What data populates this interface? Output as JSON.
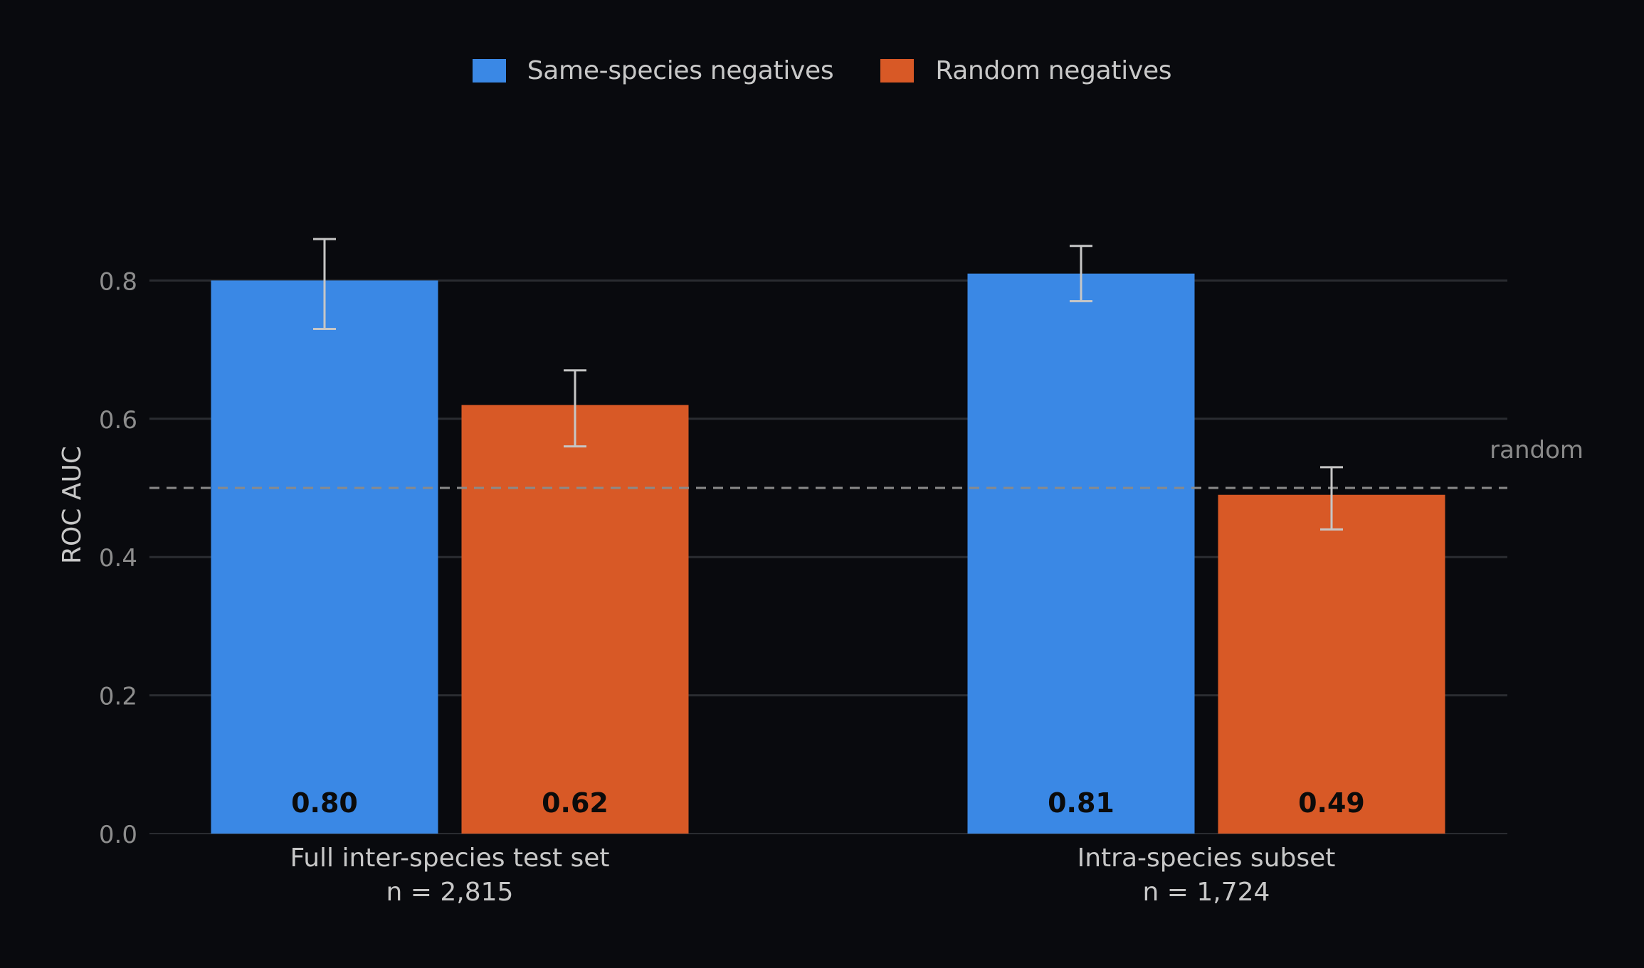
{
  "chart_data": {
    "type": "bar",
    "title": "",
    "xlabel": "",
    "ylabel": "ROC AUC",
    "ylim": [
      0,
      1.0
    ],
    "yticks": [
      0.0,
      0.2,
      0.4,
      0.6,
      0.8
    ],
    "ytick_labels": [
      "0.0",
      "0.2",
      "0.4",
      "0.6",
      "0.8"
    ],
    "grid": true,
    "legend_position": "top-center",
    "categories": [
      [
        "Full inter-species test set",
        "n = 2,815"
      ],
      [
        "Intra-species subset",
        "n = 1,724"
      ]
    ],
    "series": [
      {
        "name": "Same-species negatives",
        "color": "#3a88e5",
        "values": [
          0.8,
          0.81
        ],
        "error_low": [
          0.73,
          0.77
        ],
        "error_high": [
          0.86,
          0.85
        ],
        "value_labels": [
          "0.80",
          "0.81"
        ]
      },
      {
        "name": "Random negatives",
        "color": "#d85926",
        "values": [
          0.62,
          0.49
        ],
        "error_low": [
          0.56,
          0.44
        ],
        "error_high": [
          0.67,
          0.53
        ],
        "value_labels": [
          "0.62",
          "0.49"
        ]
      }
    ],
    "reference_line": {
      "value": 0.5,
      "label": "random",
      "style": "dashed",
      "color": "#8a8a8a"
    },
    "colors": {
      "background": "#090a0e",
      "grid": "#2a2c31",
      "tick_text": "#8d8d8d",
      "category_text": "#c8c8c8",
      "value_label_text": "#0b0b0b",
      "error_bar": "#c6c6c6"
    }
  }
}
